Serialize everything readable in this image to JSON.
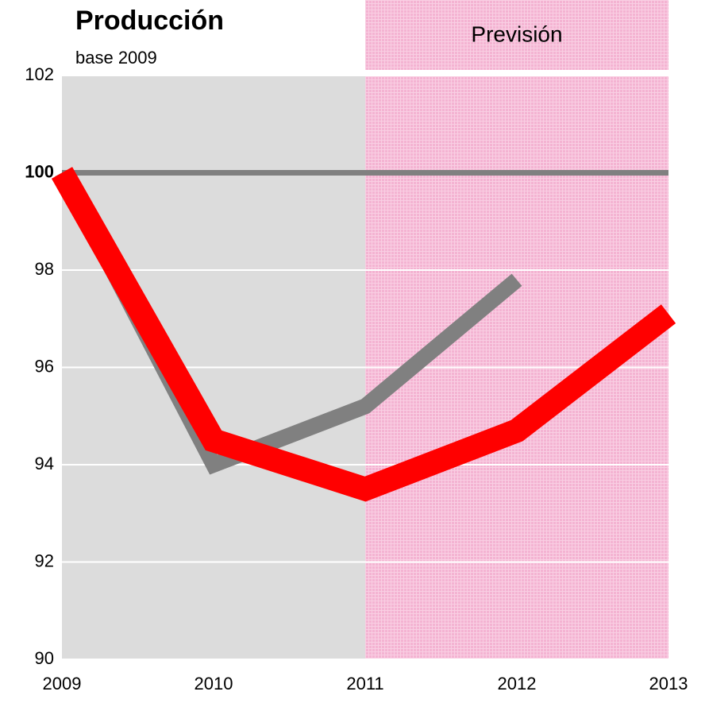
{
  "chart_data": {
    "type": "line",
    "title": "Producción",
    "subtitle": "base 2009",
    "x": [
      2009,
      2010,
      2011,
      2012,
      2013
    ],
    "series": [
      {
        "color": "#808080",
        "values": [
          100,
          94,
          95.2,
          97.8,
          null
        ]
      },
      {
        "color": "#ff0000",
        "values": [
          100,
          94.5,
          93.5,
          94.7,
          97.1
        ]
      }
    ],
    "xlim": [
      2009,
      2013
    ],
    "xticks": [
      2009,
      2010,
      2011,
      2012,
      2013
    ],
    "ylim": [
      90,
      102
    ],
    "yticks": [
      90,
      92,
      94,
      96,
      98,
      100,
      102
    ],
    "reference_line": 100,
    "grid": true,
    "annotations": [
      {
        "text": "Previsión",
        "x0": 2011,
        "x1": 2013
      }
    ]
  }
}
